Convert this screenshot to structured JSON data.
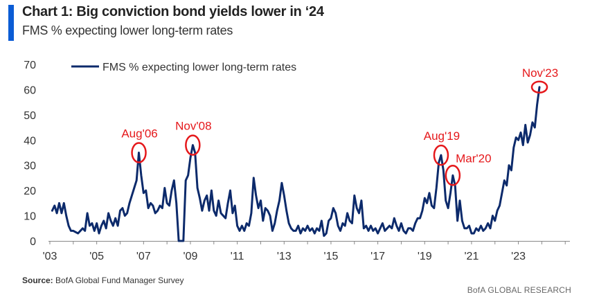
{
  "header": {
    "title": "Chart 1: Big conviction bond yields lower in ‘24",
    "subtitle": "FMS % expecting lower long-term rates"
  },
  "footer": {
    "source_label": "Source:",
    "source_text": "BofA Global Fund Manager Survey",
    "brand": "BofA GLOBAL RESEARCH"
  },
  "colors": {
    "line": "#0c2a6b",
    "annotation": "#e5181b",
    "accent": "#0b5cd5"
  },
  "chart_data": {
    "type": "line",
    "title": "Chart 1: Big conviction bond yields lower in ‘24",
    "subtitle": "FMS % expecting lower long-term rates",
    "xlabel": "",
    "ylabel": "",
    "ylim": [
      0,
      70
    ],
    "xlim": [
      2003.0,
      2025.2
    ],
    "yticks": [
      0,
      10,
      20,
      30,
      40,
      50,
      60,
      70
    ],
    "xticks": [
      {
        "value": 2003,
        "label": "'03"
      },
      {
        "value": 2005,
        "label": "'05"
      },
      {
        "value": 2007,
        "label": "'07"
      },
      {
        "value": 2009,
        "label": "'09"
      },
      {
        "value": 2011,
        "label": "'11"
      },
      {
        "value": 2013,
        "label": "'13"
      },
      {
        "value": 2015,
        "label": "'15"
      },
      {
        "value": 2017,
        "label": "'17"
      },
      {
        "value": 2019,
        "label": "'19"
      },
      {
        "value": 2021,
        "label": "'21"
      },
      {
        "value": 2023,
        "label": "'23"
      }
    ],
    "legend": "top-left",
    "grid": false,
    "series": [
      {
        "name": "FMS % expecting lower long-term rates",
        "points": [
          [
            2003.1,
            12
          ],
          [
            2003.2,
            14
          ],
          [
            2003.3,
            11
          ],
          [
            2003.4,
            15
          ],
          [
            2003.5,
            11
          ],
          [
            2003.6,
            15
          ],
          [
            2003.7,
            10
          ],
          [
            2003.8,
            6
          ],
          [
            2003.9,
            4
          ],
          [
            2004.0,
            4
          ],
          [
            2004.2,
            3
          ],
          [
            2004.4,
            5
          ],
          [
            2004.5,
            4
          ],
          [
            2004.6,
            11
          ],
          [
            2004.7,
            6
          ],
          [
            2004.8,
            7
          ],
          [
            2004.9,
            4
          ],
          [
            2005.0,
            7
          ],
          [
            2005.1,
            3
          ],
          [
            2005.2,
            6
          ],
          [
            2005.3,
            8
          ],
          [
            2005.4,
            5
          ],
          [
            2005.5,
            11
          ],
          [
            2005.6,
            8
          ],
          [
            2005.7,
            6
          ],
          [
            2005.8,
            9
          ],
          [
            2005.9,
            6
          ],
          [
            2006.0,
            12
          ],
          [
            2006.1,
            13
          ],
          [
            2006.2,
            10
          ],
          [
            2006.3,
            11
          ],
          [
            2006.4,
            15
          ],
          [
            2006.5,
            18
          ],
          [
            2006.6,
            21
          ],
          [
            2006.7,
            24
          ],
          [
            2006.8,
            35
          ],
          [
            2006.9,
            26
          ],
          [
            2007.0,
            19
          ],
          [
            2007.1,
            20
          ],
          [
            2007.2,
            13
          ],
          [
            2007.3,
            15
          ],
          [
            2007.4,
            14
          ],
          [
            2007.5,
            11
          ],
          [
            2007.6,
            12
          ],
          [
            2007.7,
            14
          ],
          [
            2007.8,
            13
          ],
          [
            2007.9,
            21
          ],
          [
            2008.0,
            15
          ],
          [
            2008.1,
            14
          ],
          [
            2008.2,
            20
          ],
          [
            2008.3,
            24
          ],
          [
            2008.4,
            15
          ],
          [
            2008.5,
            0
          ],
          [
            2008.6,
            0
          ],
          [
            2008.7,
            0
          ],
          [
            2008.8,
            24
          ],
          [
            2008.9,
            26
          ],
          [
            2009.0,
            33
          ],
          [
            2009.1,
            38
          ],
          [
            2009.2,
            35
          ],
          [
            2009.3,
            21
          ],
          [
            2009.4,
            17
          ],
          [
            2009.5,
            12
          ],
          [
            2009.6,
            16
          ],
          [
            2009.7,
            18
          ],
          [
            2009.8,
            12
          ],
          [
            2009.9,
            20
          ],
          [
            2010.0,
            12
          ],
          [
            2010.1,
            10
          ],
          [
            2010.2,
            16
          ],
          [
            2010.3,
            11
          ],
          [
            2010.5,
            9
          ],
          [
            2010.6,
            15
          ],
          [
            2010.7,
            20
          ],
          [
            2010.8,
            11
          ],
          [
            2010.9,
            14
          ],
          [
            2011.0,
            6
          ],
          [
            2011.1,
            4
          ],
          [
            2011.2,
            6
          ],
          [
            2011.3,
            4
          ],
          [
            2011.4,
            7
          ],
          [
            2011.5,
            6
          ],
          [
            2011.6,
            11
          ],
          [
            2011.7,
            25
          ],
          [
            2011.8,
            18
          ],
          [
            2011.9,
            13
          ],
          [
            2012.0,
            16
          ],
          [
            2012.1,
            8
          ],
          [
            2012.2,
            13
          ],
          [
            2012.3,
            12
          ],
          [
            2012.4,
            10
          ],
          [
            2012.5,
            4
          ],
          [
            2012.6,
            7
          ],
          [
            2012.7,
            12
          ],
          [
            2012.8,
            16
          ],
          [
            2012.9,
            23
          ],
          [
            2013.0,
            18
          ],
          [
            2013.1,
            12
          ],
          [
            2013.2,
            7
          ],
          [
            2013.3,
            5
          ],
          [
            2013.4,
            4
          ],
          [
            2013.5,
            4
          ],
          [
            2013.6,
            6
          ],
          [
            2013.7,
            3
          ],
          [
            2013.8,
            5
          ],
          [
            2013.9,
            4
          ],
          [
            2014.0,
            6
          ],
          [
            2014.1,
            4
          ],
          [
            2014.2,
            5
          ],
          [
            2014.3,
            3
          ],
          [
            2014.4,
            5
          ],
          [
            2014.5,
            4
          ],
          [
            2014.6,
            8
          ],
          [
            2014.7,
            2
          ],
          [
            2014.8,
            3
          ],
          [
            2014.9,
            8
          ],
          [
            2015.0,
            9
          ],
          [
            2015.1,
            13
          ],
          [
            2015.2,
            11
          ],
          [
            2015.3,
            6
          ],
          [
            2015.4,
            4
          ],
          [
            2015.5,
            7
          ],
          [
            2015.6,
            6
          ],
          [
            2015.7,
            11
          ],
          [
            2015.8,
            8
          ],
          [
            2015.9,
            7
          ],
          [
            2016.0,
            18
          ],
          [
            2016.1,
            13
          ],
          [
            2016.2,
            11
          ],
          [
            2016.3,
            16
          ],
          [
            2016.4,
            5
          ],
          [
            2016.5,
            6
          ],
          [
            2016.6,
            4
          ],
          [
            2016.7,
            6
          ],
          [
            2016.8,
            4
          ],
          [
            2016.9,
            5
          ],
          [
            2017.0,
            3
          ],
          [
            2017.2,
            7
          ],
          [
            2017.3,
            4
          ],
          [
            2017.4,
            5
          ],
          [
            2017.5,
            6
          ],
          [
            2017.6,
            5
          ],
          [
            2017.7,
            9
          ],
          [
            2017.8,
            6
          ],
          [
            2017.9,
            4
          ],
          [
            2018.0,
            7
          ],
          [
            2018.1,
            4
          ],
          [
            2018.2,
            3
          ],
          [
            2018.3,
            5
          ],
          [
            2018.4,
            5
          ],
          [
            2018.5,
            4
          ],
          [
            2018.6,
            7
          ],
          [
            2018.7,
            9
          ],
          [
            2018.8,
            9
          ],
          [
            2018.9,
            12
          ],
          [
            2019.0,
            17
          ],
          [
            2019.1,
            15
          ],
          [
            2019.2,
            19
          ],
          [
            2019.3,
            14
          ],
          [
            2019.4,
            13
          ],
          [
            2019.5,
            21
          ],
          [
            2019.6,
            31
          ],
          [
            2019.7,
            34
          ],
          [
            2019.8,
            28
          ],
          [
            2019.9,
            16
          ],
          [
            2020.0,
            13
          ],
          [
            2020.1,
            19
          ],
          [
            2020.2,
            26
          ],
          [
            2020.3,
            22
          ],
          [
            2020.4,
            8
          ],
          [
            2020.5,
            16
          ],
          [
            2020.6,
            8
          ],
          [
            2020.7,
            5
          ],
          [
            2020.8,
            5
          ],
          [
            2020.9,
            6
          ],
          [
            2021.0,
            3
          ],
          [
            2021.1,
            3
          ],
          [
            2021.2,
            5
          ],
          [
            2021.3,
            4
          ],
          [
            2021.4,
            6
          ],
          [
            2021.5,
            4
          ],
          [
            2021.6,
            5
          ],
          [
            2021.7,
            7
          ],
          [
            2021.8,
            5
          ],
          [
            2021.9,
            10
          ],
          [
            2022.0,
            8
          ],
          [
            2022.1,
            12
          ],
          [
            2022.2,
            14
          ],
          [
            2022.3,
            19
          ],
          [
            2022.4,
            24
          ],
          [
            2022.5,
            22
          ],
          [
            2022.6,
            30
          ],
          [
            2022.7,
            28
          ],
          [
            2022.8,
            37
          ],
          [
            2022.9,
            41
          ],
          [
            2023.0,
            40
          ],
          [
            2023.1,
            43
          ],
          [
            2023.2,
            38
          ],
          [
            2023.3,
            46
          ],
          [
            2023.4,
            39
          ],
          [
            2023.5,
            42
          ],
          [
            2023.6,
            47
          ],
          [
            2023.7,
            45
          ],
          [
            2023.8,
            54
          ],
          [
            2023.9,
            61
          ]
        ]
      }
    ],
    "annotations": [
      {
        "label": "Aug'06",
        "x": 2006.8,
        "y": 35
      },
      {
        "label": "Nov'08",
        "x": 2009.1,
        "y": 38
      },
      {
        "label": "Aug'19",
        "x": 2019.7,
        "y": 34
      },
      {
        "label": "Mar'20",
        "x": 2020.2,
        "y": 26
      },
      {
        "label": "Nov'23",
        "x": 2023.9,
        "y": 61
      }
    ]
  }
}
